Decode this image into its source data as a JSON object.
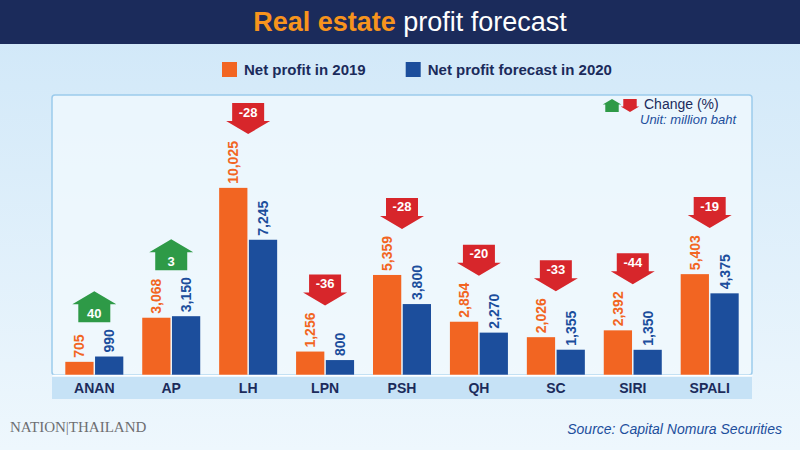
{
  "chart_data": {
    "type": "bar",
    "title": "Real estate profit forecast",
    "categories": [
      "ANAN",
      "AP",
      "LH",
      "LPN",
      "PSH",
      "QH",
      "SC",
      "SIRI",
      "SPALI"
    ],
    "series": [
      {
        "name": "Net profit in 2019",
        "color": "#f26522",
        "values": [
          705,
          3068,
          10025,
          1256,
          5359,
          2854,
          2026,
          2392,
          5403
        ],
        "value_labels": [
          "705",
          "3,068",
          "10,025",
          "1,256",
          "5,359",
          "2,854",
          "2,026",
          "2,392",
          "5,403"
        ]
      },
      {
        "name": "Net profit forecast in 2020",
        "color": "#1c4e9c",
        "values": [
          990,
          3150,
          7245,
          800,
          3800,
          2270,
          1355,
          1350,
          4375
        ],
        "value_labels": [
          "990",
          "3,150",
          "7,245",
          "800",
          "3,800",
          "2,270",
          "1,355",
          "1,350",
          "4,375"
        ]
      }
    ],
    "ylim": [
      0,
      15000
    ],
    "tick_labels": "x",
    "data_labels": true,
    "legend": "top",
    "change": {
      "label": "Change (%)",
      "values": [
        40,
        3,
        -28,
        -36,
        -28,
        -20,
        -33,
        -44,
        -19
      ]
    },
    "unit_note": "Unit: million baht",
    "source": "Source: Capital Nomura Securities",
    "logo": "NATION|THAILAND"
  }
}
